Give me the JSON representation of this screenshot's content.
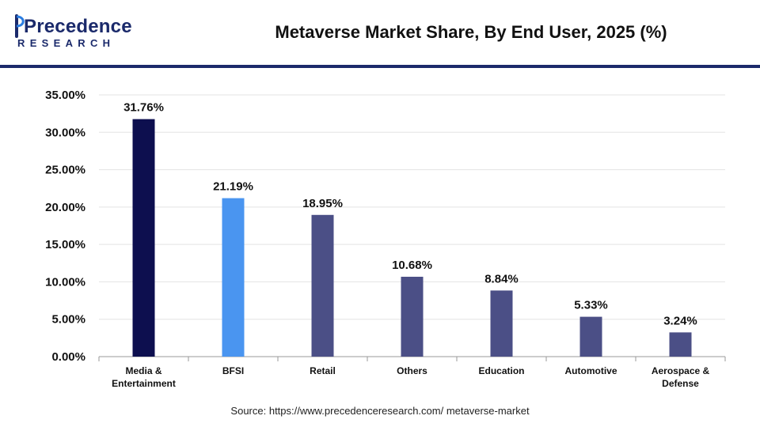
{
  "brand": {
    "logo_main": "Precedence",
    "logo_sub": "RESEARCH",
    "color": "#1b2a6b"
  },
  "chart_data": {
    "type": "bar",
    "title": "Metaverse Market Share, By End User, 2025 (%)",
    "categories": [
      [
        "Media &",
        "Entertainment"
      ],
      [
        "BFSI"
      ],
      [
        "Retail"
      ],
      [
        "Others"
      ],
      [
        "Education"
      ],
      [
        "Automotive"
      ],
      [
        "Aerospace &",
        "Defense"
      ]
    ],
    "values": [
      31.76,
      21.19,
      18.95,
      10.68,
      8.84,
      5.33,
      3.24
    ],
    "value_labels": [
      "31.76%",
      "21.19%",
      "18.95%",
      "10.68%",
      "8.84%",
      "5.33%",
      "3.24%"
    ],
    "bar_colors": [
      "#0d0f4f",
      "#4a95f0",
      "#4b4f86",
      "#4b4f86",
      "#4b4f86",
      "#4b4f86",
      "#4b4f86"
    ],
    "ylim": [
      0,
      35
    ],
    "yticks": [
      0,
      5,
      10,
      15,
      20,
      25,
      30,
      35
    ],
    "ytick_labels": [
      "0.00%",
      "5.00%",
      "10.00%",
      "15.00%",
      "20.00%",
      "25.00%",
      "30.00%",
      "35.00%"
    ],
    "grid": true,
    "xlabel": "",
    "ylabel": ""
  },
  "source": "Source: https://www.precedenceresearch.com/ metaverse-market"
}
